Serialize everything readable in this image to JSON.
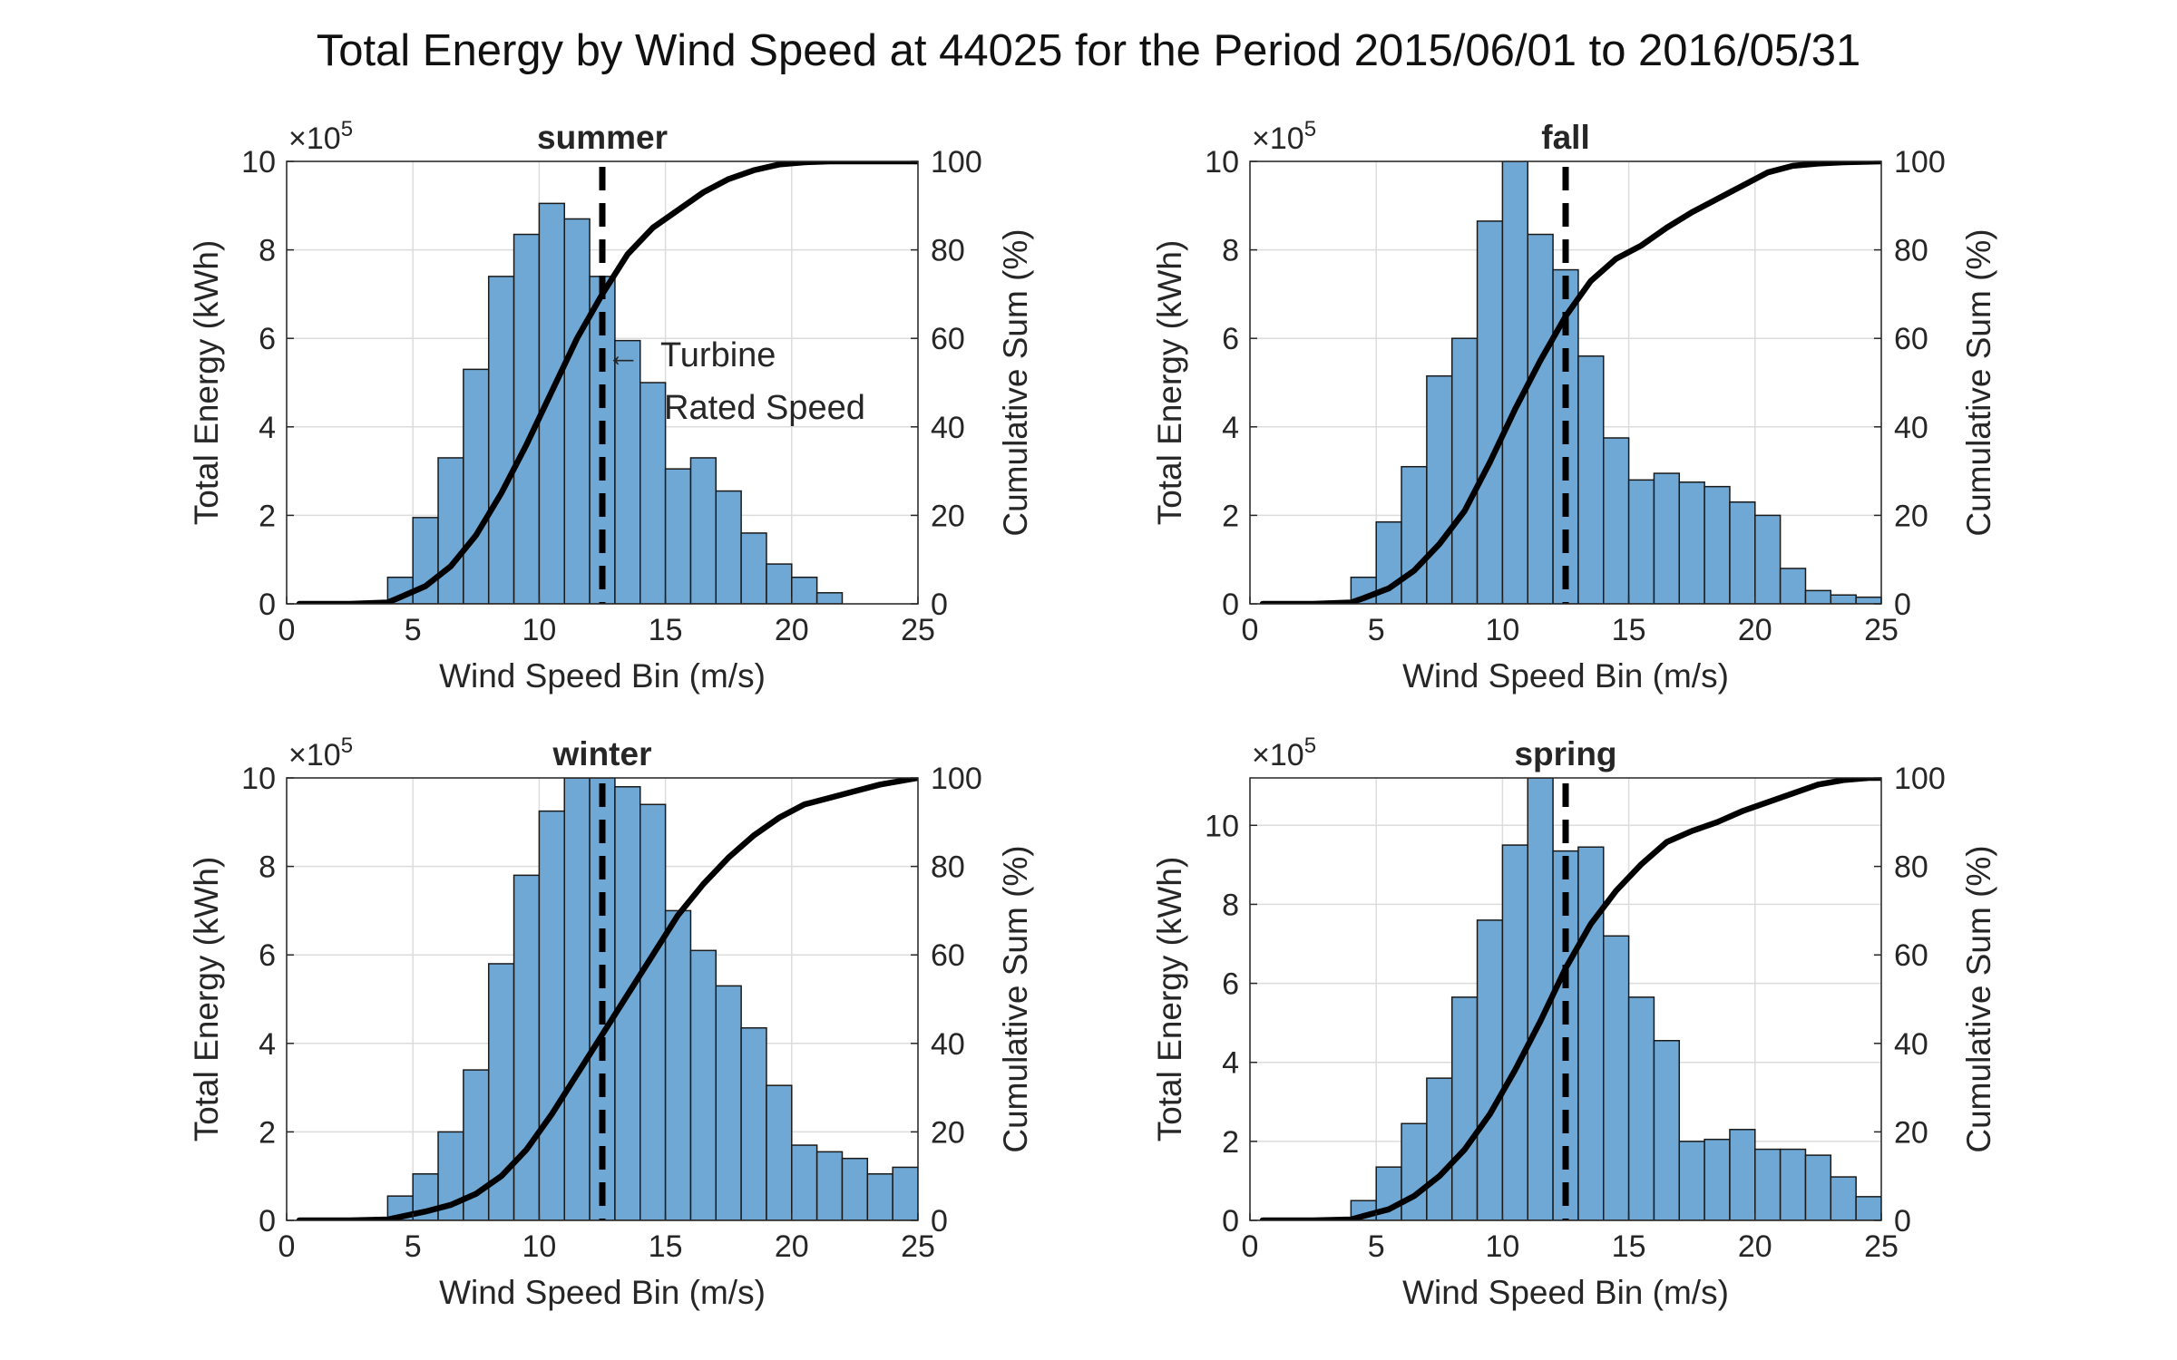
{
  "figure_title": "Total Energy by Wind Speed at 44025 for the Period 2015/06/01 to 2016/05/31",
  "colors": {
    "bar_fill": "#6fa8d4",
    "bar_edge": "#1a1a1a",
    "line": "#000000",
    "grid": "#dcdcdc"
  },
  "chart_data": [
    {
      "type": "bar",
      "title": "summer",
      "xlabel": "Wind Speed Bin (m/s)",
      "ylabel": "Total Energy (kWh)",
      "y2label": "Cumulative Sum (%)",
      "y_exponent": "×10",
      "y_exponent_power": "5",
      "xlim": [
        0,
        25
      ],
      "ylim": [
        0,
        10
      ],
      "y2lim": [
        0,
        100
      ],
      "xticks": [
        0,
        5,
        10,
        15,
        20,
        25
      ],
      "yticks": [
        0,
        2,
        4,
        6,
        8,
        10
      ],
      "y2ticks": [
        0,
        20,
        40,
        60,
        80,
        100
      ],
      "bin_edges_start": 0,
      "bin_width": 1,
      "bar_values": [
        0,
        0,
        0,
        0,
        0.6,
        1.95,
        3.3,
        5.3,
        7.4,
        8.35,
        9.05,
        8.7,
        7.4,
        5.95,
        5.0,
        3.05,
        3.3,
        2.55,
        1.6,
        0.9,
        0.6,
        0.25,
        0,
        0,
        0
      ],
      "cumulative_x": [
        0.5,
        2.5,
        4.0,
        4.5,
        5.5,
        6.5,
        7.5,
        8.5,
        9.5,
        10.5,
        11.5,
        12.5,
        13.5,
        14.5,
        15.5,
        16.5,
        17.5,
        18.5,
        19.5,
        20.5,
        21.5,
        22.5,
        25
      ],
      "cumulative_y": [
        0,
        0,
        0.3,
        1.5,
        4.0,
        8.5,
        15.5,
        25,
        36,
        48,
        60,
        70,
        79,
        85,
        89,
        93,
        96,
        98,
        99.3,
        99.8,
        100,
        100,
        100
      ],
      "rated_speed": 12.5,
      "annotation": {
        "line1": "Turbine",
        "line2": "Rated Speed",
        "arrow": "←"
      }
    },
    {
      "type": "bar",
      "title": "fall",
      "xlabel": "Wind Speed Bin (m/s)",
      "ylabel": "Total Energy (kWh)",
      "y2label": "Cumulative Sum (%)",
      "y_exponent": "×10",
      "y_exponent_power": "5",
      "xlim": [
        0,
        25
      ],
      "ylim": [
        0,
        10
      ],
      "y2lim": [
        0,
        100
      ],
      "xticks": [
        0,
        5,
        10,
        15,
        20,
        25
      ],
      "yticks": [
        0,
        2,
        4,
        6,
        8,
        10
      ],
      "y2ticks": [
        0,
        20,
        40,
        60,
        80,
        100
      ],
      "bin_edges_start": 0,
      "bin_width": 1,
      "bar_values": [
        0,
        0,
        0,
        0,
        0.6,
        1.85,
        3.1,
        5.15,
        6.0,
        8.65,
        10.0,
        8.35,
        7.55,
        5.6,
        3.75,
        2.8,
        2.95,
        2.75,
        2.65,
        2.3,
        2.0,
        0.8,
        0.3,
        0.2,
        0.15
      ],
      "cumulative_x": [
        0.5,
        2.5,
        4.0,
        4.5,
        5.5,
        6.5,
        7.5,
        8.5,
        9.5,
        10.5,
        11.5,
        12.5,
        13.5,
        14.5,
        15.5,
        16.5,
        17.5,
        18.5,
        19.5,
        20.5,
        21.5,
        22.5,
        23.5,
        25
      ],
      "cumulative_y": [
        0,
        0,
        0.3,
        1.3,
        3.5,
        7.5,
        13.5,
        21,
        32,
        44,
        55,
        65,
        73,
        78,
        81,
        85,
        88.5,
        91.5,
        94.5,
        97.5,
        99,
        99.5,
        99.8,
        100
      ],
      "rated_speed": 12.5
    },
    {
      "type": "bar",
      "title": "winter",
      "xlabel": "Wind Speed Bin (m/s)",
      "ylabel": "Total Energy (kWh)",
      "y2label": "Cumulative Sum (%)",
      "y_exponent": "×10",
      "y_exponent_power": "5",
      "xlim": [
        0,
        25
      ],
      "ylim": [
        0,
        10
      ],
      "y2lim": [
        0,
        100
      ],
      "xticks": [
        0,
        5,
        10,
        15,
        20,
        25
      ],
      "yticks": [
        0,
        2,
        4,
        6,
        8,
        10
      ],
      "y2ticks": [
        0,
        20,
        40,
        60,
        80,
        100
      ],
      "bin_edges_start": 0,
      "bin_width": 1,
      "bar_values": [
        0,
        0,
        0,
        0,
        0.55,
        1.05,
        2.0,
        3.4,
        5.8,
        7.8,
        9.25,
        10.2,
        10.1,
        9.8,
        9.4,
        7.0,
        6.1,
        5.3,
        4.35,
        3.05,
        1.7,
        1.55,
        1.4,
        1.05,
        1.2
      ],
      "cumulative_x": [
        0.5,
        2.5,
        4.0,
        4.5,
        5.5,
        6.5,
        7.5,
        8.5,
        9.5,
        10.5,
        11.5,
        12.5,
        13.5,
        14.5,
        15.5,
        16.5,
        17.5,
        18.5,
        19.5,
        20.5,
        21.5,
        22.5,
        23.5,
        25
      ],
      "cumulative_y": [
        0,
        0,
        0.2,
        0.8,
        2.0,
        3.5,
        6,
        10,
        16,
        24,
        33,
        42,
        51,
        60,
        69,
        76,
        82,
        87,
        91,
        94,
        95.5,
        97,
        98.5,
        100
      ],
      "rated_speed": 12.5
    },
    {
      "type": "bar",
      "title": "spring",
      "xlabel": "Wind Speed Bin (m/s)",
      "ylabel": "Total Energy (kWh)",
      "y2label": "Cumulative Sum (%)",
      "y_exponent": "×10",
      "y_exponent_power": "5",
      "xlim": [
        0,
        25
      ],
      "ylim": [
        0,
        11.2
      ],
      "y2lim": [
        0,
        100
      ],
      "xticks": [
        0,
        5,
        10,
        15,
        20,
        25
      ],
      "yticks": [
        0,
        2,
        4,
        6,
        8,
        10
      ],
      "y2ticks": [
        0,
        20,
        40,
        60,
        80,
        100
      ],
      "bin_edges_start": 0,
      "bin_width": 1,
      "bar_values": [
        0,
        0,
        0,
        0,
        0.5,
        1.35,
        2.45,
        3.6,
        5.65,
        7.6,
        9.5,
        11.2,
        9.35,
        9.45,
        7.2,
        5.65,
        4.55,
        2.0,
        2.05,
        2.3,
        1.8,
        1.8,
        1.65,
        1.1,
        0.6
      ],
      "cumulative_x": [
        0.5,
        2.5,
        4.0,
        4.5,
        5.5,
        6.5,
        7.5,
        8.5,
        9.5,
        10.5,
        11.5,
        12.5,
        13.5,
        14.5,
        15.5,
        16.5,
        17.5,
        18.5,
        19.5,
        20.5,
        21.5,
        22.5,
        23.5,
        24.5,
        25
      ],
      "cumulative_y": [
        0,
        0,
        0.2,
        1.0,
        2.5,
        5.5,
        10,
        16,
        24,
        34,
        45,
        57,
        67,
        74.5,
        80.5,
        85.5,
        88,
        90,
        92.5,
        94.5,
        96.5,
        98.5,
        99.5,
        100,
        100
      ],
      "rated_speed": 12.5
    }
  ]
}
